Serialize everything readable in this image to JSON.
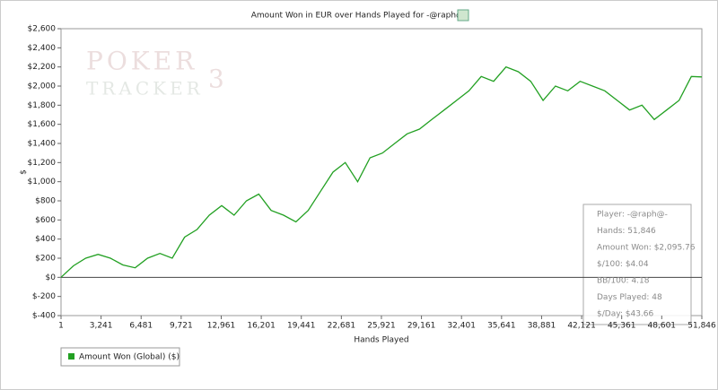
{
  "chart_data": {
    "type": "line",
    "title": "Amount Won in EUR over Hands Played for -@raph@-",
    "watermark": [
      "POKER",
      "TRACKER",
      "3"
    ],
    "x_label": "Hands Played",
    "y_label": "$",
    "x": [
      1,
      1000,
      2000,
      3000,
      4000,
      5000,
      6000,
      7000,
      8000,
      9000,
      10000,
      11000,
      12000,
      13000,
      14000,
      15000,
      16000,
      17000,
      18000,
      19000,
      20000,
      21000,
      22000,
      23000,
      24000,
      25000,
      26000,
      27000,
      28000,
      29000,
      30000,
      31000,
      32000,
      33000,
      34000,
      35000,
      36000,
      37000,
      38000,
      39000,
      40000,
      41000,
      42000,
      43000,
      44000,
      45000,
      46000,
      47000,
      48000,
      49000,
      50000,
      51000,
      51846
    ],
    "series": [
      {
        "name": "Amount Won (Global) ($)",
        "color": "#22a022",
        "values": [
          0,
          120,
          200,
          240,
          200,
          130,
          100,
          200,
          250,
          200,
          420,
          500,
          650,
          750,
          650,
          800,
          870,
          700,
          650,
          580,
          700,
          900,
          1100,
          1200,
          1000,
          1250,
          1300,
          1400,
          1500,
          1550,
          1650,
          1750,
          1850,
          1950,
          2100,
          2050,
          2200,
          2150,
          2050,
          1850,
          2000,
          1950,
          2050,
          2000,
          1950,
          1850,
          1750,
          1800,
          1650,
          1750,
          1850,
          2100,
          2095.76
        ]
      }
    ],
    "xlim": [
      1,
      51846
    ],
    "xticks": [
      1,
      {
        "value": 3241,
        "label": "3,241"
      },
      {
        "value": 6481,
        "label": "6,481"
      },
      {
        "value": 9721,
        "label": "9,721"
      },
      {
        "value": 12961,
        "label": "12,961"
      },
      {
        "value": 16201,
        "label": "16,201"
      },
      {
        "value": 19441,
        "label": "19,441"
      },
      {
        "value": 22681,
        "label": "22,681"
      },
      {
        "value": 25921,
        "label": "25,921"
      },
      {
        "value": 29161,
        "label": "29,161"
      },
      {
        "value": 32401,
        "label": "32,401"
      },
      {
        "value": 35641,
        "label": "35,641"
      },
      {
        "value": 38881,
        "label": "38,881"
      },
      {
        "value": 42121,
        "label": "42,121"
      },
      {
        "value": 45361,
        "label": "45,361"
      },
      {
        "value": 48601,
        "label": "48,601"
      },
      {
        "value": 51846,
        "label": "51,846"
      }
    ],
    "ylim": [
      -400,
      2600
    ],
    "yticks": [
      {
        "value": -400,
        "label": "$-400"
      },
      {
        "value": -200,
        "label": "$-200"
      },
      {
        "value": 0,
        "label": "$0"
      },
      {
        "value": 200,
        "label": "$200"
      },
      {
        "value": 400,
        "label": "$400"
      },
      {
        "value": 600,
        "label": "$600"
      },
      {
        "value": 800,
        "label": "$800"
      },
      {
        "value": 1000,
        "label": "$1,000"
      },
      {
        "value": 1200,
        "label": "$1,200"
      },
      {
        "value": 1400,
        "label": "$1,400"
      },
      {
        "value": 1600,
        "label": "$1,600"
      },
      {
        "value": 1800,
        "label": "$1,800"
      },
      {
        "value": 2000,
        "label": "$2,000"
      },
      {
        "value": 2200,
        "label": "$2,200"
      },
      {
        "value": 2400,
        "label": "$2,400"
      },
      {
        "value": 2600,
        "label": "$2,600"
      }
    ],
    "grid": false,
    "stats": [
      "Player: -@raph@-",
      "Hands: 51,846",
      "Amount Won: $2,095.76",
      "$/100: $4.04",
      "BB/100: 4.18",
      "Days Played: 48",
      "$/Day: $43.66"
    ]
  }
}
